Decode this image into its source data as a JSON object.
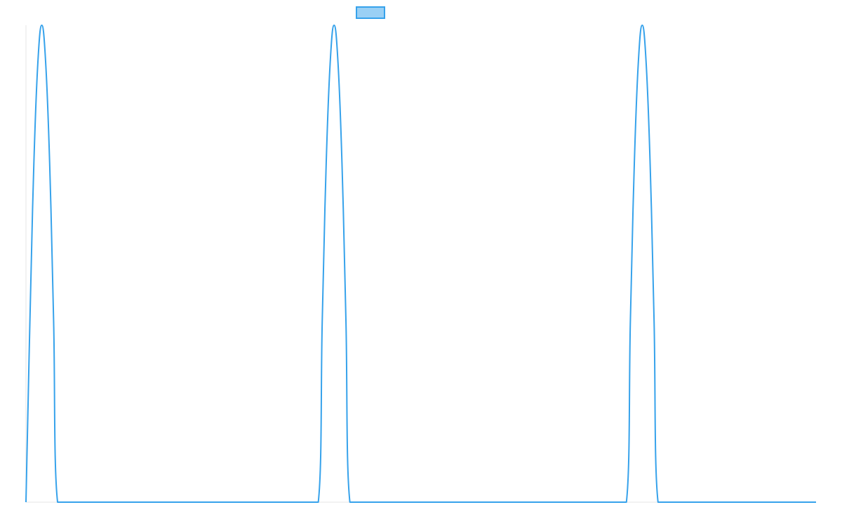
{
  "chart_data": {
    "type": "line",
    "title": "",
    "xlabel": "",
    "ylabel": "",
    "xlim": [
      0,
      100
    ],
    "ylim": [
      0,
      1
    ],
    "grid": false,
    "legend": {
      "position": "top-center",
      "entries": [
        {
          "label": "",
          "color": "#36a2eb",
          "fill": "#9ad0f5"
        }
      ]
    },
    "series": [
      {
        "color": "#36a2eb",
        "x": [
          0,
          0.5,
          1.0,
          1.5,
          2.0,
          2.5,
          3.0,
          3.5,
          4.0,
          37.0,
          37.5,
          38.0,
          38.5,
          39.0,
          39.5,
          40.0,
          40.5,
          41.0,
          76.0,
          76.5,
          77.0,
          77.5,
          78.0,
          78.5,
          79.0,
          79.5,
          80.0,
          100
        ],
        "y": [
          0,
          0.38,
          0.71,
          0.92,
          1.0,
          0.92,
          0.71,
          0.38,
          0,
          0,
          0.38,
          0.71,
          0.92,
          1.0,
          0.92,
          0.71,
          0.38,
          0,
          0,
          0.38,
          0.71,
          0.92,
          1.0,
          0.92,
          0.71,
          0.38,
          0,
          0
        ]
      }
    ]
  }
}
